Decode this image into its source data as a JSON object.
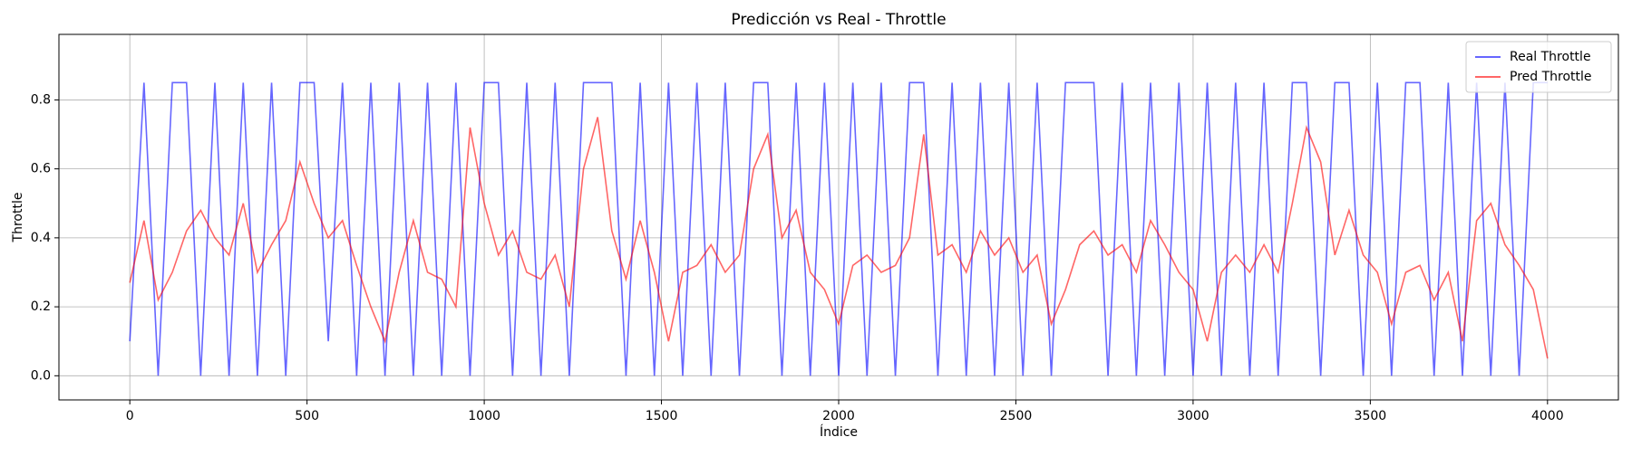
{
  "chart_data": {
    "type": "line",
    "title": "Predicción vs Real - Throttle",
    "xlabel": "Índice",
    "ylabel": "Throttle",
    "x": [
      0,
      40,
      80,
      120,
      160,
      200,
      240,
      280,
      320,
      360,
      400,
      440,
      480,
      520,
      560,
      600,
      640,
      680,
      720,
      760,
      800,
      840,
      880,
      920,
      960,
      1000,
      1040,
      1080,
      1120,
      1160,
      1200,
      1240,
      1280,
      1320,
      1360,
      1400,
      1440,
      1480,
      1520,
      1560,
      1600,
      1640,
      1680,
      1720,
      1760,
      1800,
      1840,
      1880,
      1920,
      1960,
      2000,
      2040,
      2080,
      2120,
      2160,
      2200,
      2240,
      2280,
      2320,
      2360,
      2400,
      2440,
      2480,
      2520,
      2560,
      2600,
      2640,
      2680,
      2720,
      2760,
      2800,
      2840,
      2880,
      2920,
      2960,
      3000,
      3040,
      3080,
      3120,
      3160,
      3200,
      3240,
      3280,
      3320,
      3360,
      3400,
      3440,
      3480,
      3520,
      3560,
      3600,
      3640,
      3680,
      3720,
      3760,
      3800,
      3840,
      3880,
      3920,
      3960,
      4000
    ],
    "series": [
      {
        "name": "Real Throttle",
        "color": "#0000ff",
        "values": [
          0.1,
          0.85,
          0,
          0.85,
          0.85,
          0,
          0.85,
          0,
          0.85,
          0,
          0.85,
          0,
          0.85,
          0.85,
          0.1,
          0.85,
          0,
          0.85,
          0,
          0.85,
          0,
          0.85,
          0,
          0.85,
          0,
          0.85,
          0.85,
          0,
          0.85,
          0,
          0.85,
          0,
          0.85,
          0.85,
          0.85,
          0,
          0.85,
          0,
          0.85,
          0,
          0.85,
          0,
          0.85,
          0,
          0.85,
          0.85,
          0,
          0.85,
          0,
          0.85,
          0,
          0.85,
          0,
          0.85,
          0,
          0.85,
          0.85,
          0,
          0.85,
          0,
          0.85,
          0,
          0.85,
          0,
          0.85,
          0,
          0.85,
          0.85,
          0.85,
          0,
          0.85,
          0,
          0.85,
          0,
          0.85,
          0,
          0.85,
          0,
          0.85,
          0,
          0.85,
          0,
          0.85,
          0.85,
          0,
          0.85,
          0.85,
          0,
          0.85,
          0,
          0.85,
          0.85,
          0,
          0.85,
          0,
          0.85,
          0,
          0.85,
          0,
          0.85,
          0.85
        ]
      },
      {
        "name": "Pred Throttle",
        "color": "#ff0000",
        "values": [
          0.27,
          0.45,
          0.22,
          0.3,
          0.42,
          0.48,
          0.4,
          0.35,
          0.5,
          0.3,
          0.38,
          0.45,
          0.62,
          0.5,
          0.4,
          0.45,
          0.32,
          0.2,
          0.1,
          0.3,
          0.45,
          0.3,
          0.28,
          0.2,
          0.72,
          0.5,
          0.35,
          0.42,
          0.3,
          0.28,
          0.35,
          0.2,
          0.6,
          0.75,
          0.42,
          0.28,
          0.45,
          0.3,
          0.1,
          0.3,
          0.32,
          0.38,
          0.3,
          0.35,
          0.6,
          0.7,
          0.4,
          0.48,
          0.3,
          0.25,
          0.15,
          0.32,
          0.35,
          0.3,
          0.32,
          0.4,
          0.7,
          0.35,
          0.38,
          0.3,
          0.42,
          0.35,
          0.4,
          0.3,
          0.35,
          0.15,
          0.25,
          0.38,
          0.42,
          0.35,
          0.38,
          0.3,
          0.45,
          0.38,
          0.3,
          0.25,
          0.1,
          0.3,
          0.35,
          0.3,
          0.38,
          0.3,
          0.5,
          0.72,
          0.62,
          0.35,
          0.48,
          0.35,
          0.3,
          0.15,
          0.3,
          0.32,
          0.22,
          0.3,
          0.1,
          0.45,
          0.5,
          0.38,
          0.32,
          0.25,
          0.05
        ]
      }
    ],
    "xlim": [
      -200,
      4200
    ],
    "xticks": [
      0,
      500,
      1000,
      1500,
      2000,
      2500,
      3000,
      3500,
      4000
    ],
    "ylim": [
      -0.07,
      0.99
    ],
    "yticks": [
      {
        "value": 0,
        "label": "0.0"
      },
      0.2,
      0.4,
      0.6,
      0.8
    ],
    "grid": true,
    "legend": "upper right"
  }
}
